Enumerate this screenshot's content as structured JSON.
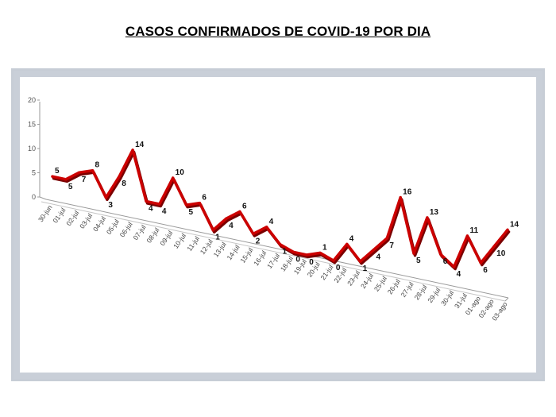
{
  "chart_data": {
    "type": "line",
    "title": "CASOS CONFIRMADOS DE COVID-19 POR DIA",
    "categories": [
      "30-jun",
      "01-jul",
      "02-jul",
      "03-jul",
      "04-jul",
      "05-jul",
      "06-jul",
      "07-jul",
      "08-jul",
      "09-jul",
      "10-jul",
      "11-jul",
      "12-jul",
      "13-jul",
      "14-jul",
      "15-jul",
      "16-jul",
      "17-jul",
      "18-jul",
      "19-jul",
      "20-jul",
      "21-jul",
      "22-jul",
      "23-jul",
      "24-jul",
      "25-jul",
      "26-jul",
      "27-jul",
      "28-jul",
      "29-jul",
      "30-jul",
      "31-jul",
      "01-ago",
      "02-ago",
      "03-ago"
    ],
    "x_tick_labels": [
      "30-jun",
      "01-jul",
      "02-jul",
      "03-jul",
      "04-jul",
      "05-jul",
      "06-jul",
      "07-jul",
      "08-jul",
      "09-jul",
      "10-jul",
      "11-jul",
      "12-jul",
      "13-jul",
      "14-jul",
      "15-jul",
      "16-jul",
      "17-jul",
      "18-jul",
      "19-jul",
      "20-jul",
      "21-jul",
      "22-jul",
      "23-jul",
      "24-jul",
      "25-jul",
      "26-jul",
      "27-jul",
      "28-jul",
      "29-jul",
      "30-jul",
      "31-jul",
      "01-ago",
      "02-ago",
      "03-ago"
    ],
    "series": [
      {
        "values": [
          5,
          5,
          7,
          8,
          3,
          8,
          14,
          4,
          4,
          10,
          5,
          6,
          1,
          4,
          6,
          2,
          4,
          1,
          0,
          0,
          1,
          0,
          4,
          1,
          4,
          7,
          16,
          5,
          13,
          6,
          4,
          11,
          6,
          10,
          14
        ],
        "color": "#cc0000"
      }
    ],
    "data_labels": [
      "5",
      "5",
      "7",
      "8",
      "3",
      "8",
      "14",
      "4",
      "4",
      "10",
      "5",
      "6",
      "1",
      "4",
      "6",
      "2",
      "4",
      "1",
      "0",
      "0",
      "1",
      "0",
      "4",
      "1",
      "4",
      "7",
      "16",
      "5",
      "13",
      "6",
      "4",
      "11",
      "6",
      "10",
      "14"
    ],
    "ylim": [
      0,
      20
    ],
    "yticks": [
      "0",
      "5",
      "10",
      "15",
      "20"
    ],
    "grid": false,
    "legend": "none",
    "xlabel": "",
    "ylabel": ""
  }
}
